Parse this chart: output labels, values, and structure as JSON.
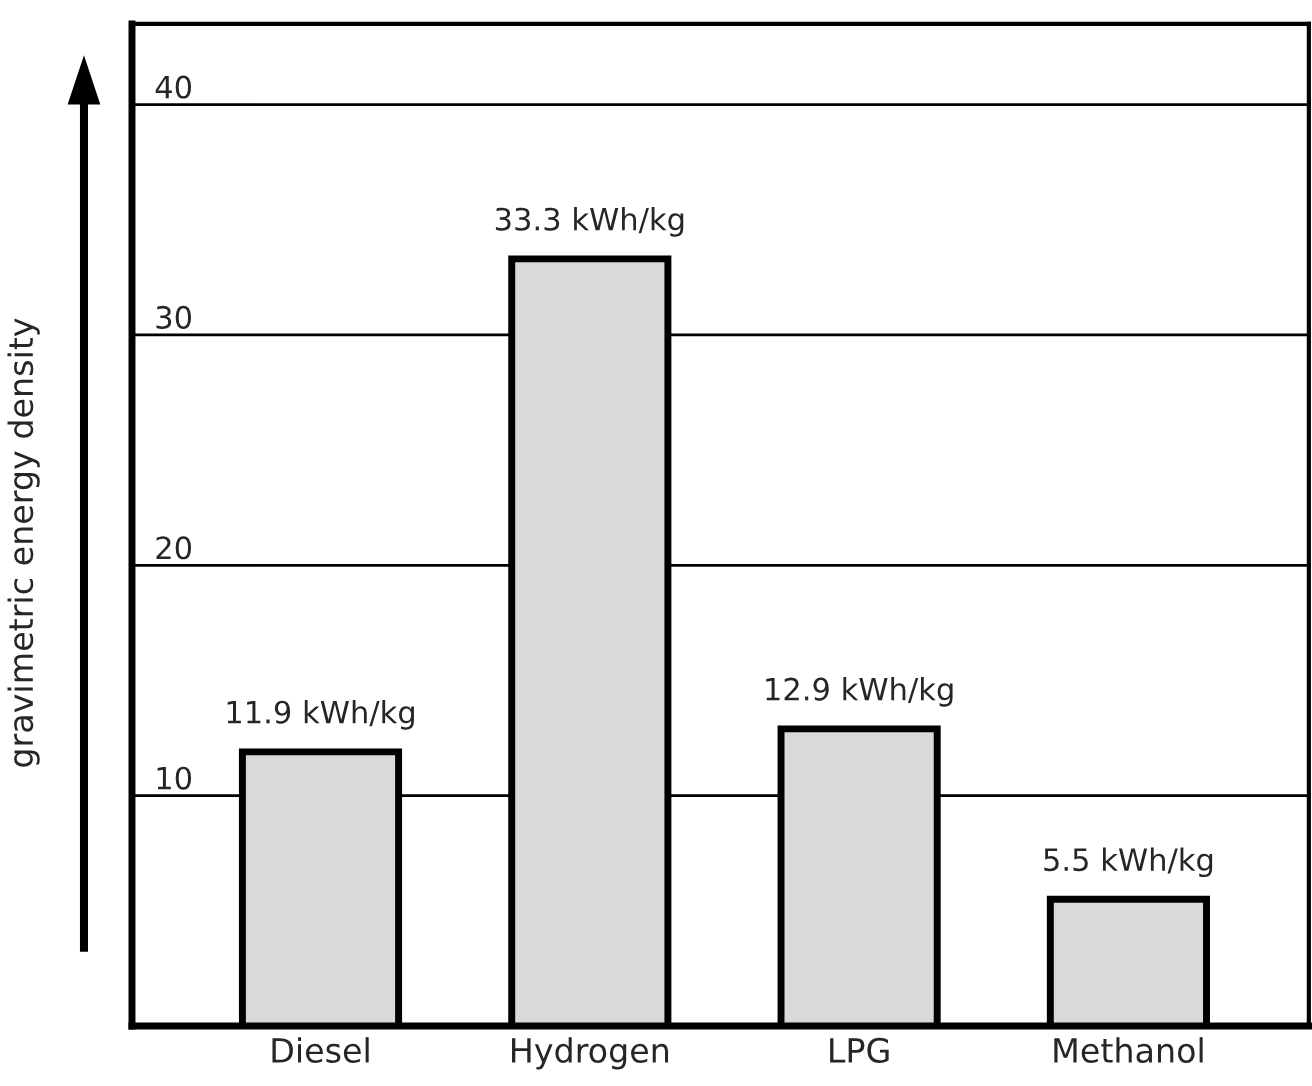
{
  "chart_data": {
    "type": "bar",
    "ylabel": "gravimetric energy density",
    "categories": [
      "Diesel",
      "Hydrogen",
      "LPG",
      "Methanol"
    ],
    "values": [
      11.9,
      33.3,
      12.9,
      5.5
    ],
    "value_labels": [
      "11.9 kWh/kg",
      "33.3 kWh/kg",
      "12.9 kWh/kg",
      "5.5 kWh/kg"
    ],
    "color": "#d9d9d9",
    "ylim": [
      0,
      43.5
    ],
    "yticks": [
      10,
      20,
      30,
      40
    ],
    "grid": "y",
    "legend": false
  }
}
